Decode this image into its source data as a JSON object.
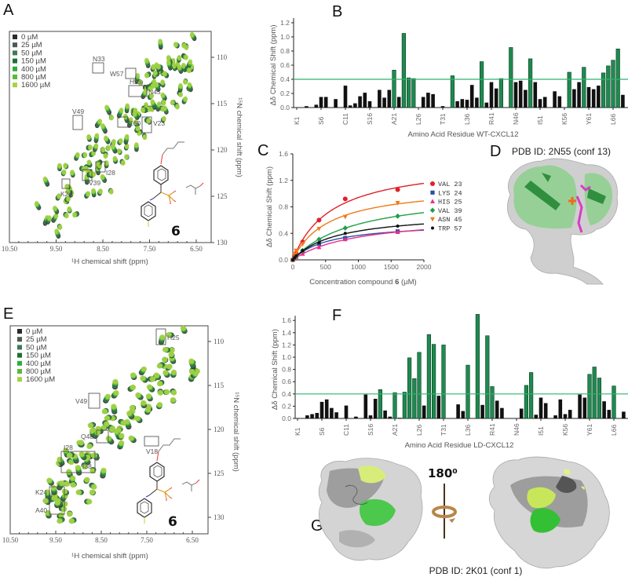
{
  "colors": {
    "significant_bar": "#1e8a50",
    "other_bar": "#111111",
    "threshold_line": "#2fb36b",
    "conc": [
      "#2a2a2a",
      "#4b5b4f",
      "#3f7a55",
      "#1f6e36",
      "#2cae3e",
      "#5cb83a",
      "#a6d246"
    ]
  },
  "panels": {
    "A": {
      "letter": "A",
      "legend": [
        "0 µM",
        "25 µM",
        "50 µM",
        "150 µM",
        "400 µM",
        "800 µM",
        "1600 µM"
      ],
      "x_ticks": [
        "10.50",
        "9.50",
        "8.50",
        "7.50",
        "6.50"
      ],
      "y_ticks": [
        "110",
        "115",
        "120",
        "125",
        "130"
      ],
      "xlabel": "¹H chemical shift (ppm)",
      "ylabel": "¹⁵N chemical shift (ppm)",
      "peak_labels": [
        "N33",
        "W57",
        "H25",
        "N45",
        "V49",
        "E60",
        "V23",
        "I28",
        "V39",
        "K24"
      ],
      "compound": "6"
    },
    "B": {
      "letter": "B"
    },
    "C": {
      "letter": "C"
    },
    "D": {
      "letter": "D",
      "title": "PDB ID: 2N55 (conf 13)"
    },
    "E": {
      "letter": "E",
      "legend": [
        "0 µM",
        "25 µM",
        "50 µM",
        "150 µM",
        "400 µM",
        "800 µM",
        "1600 µM"
      ],
      "x_ticks": [
        "10.50",
        "9.50",
        "8.50",
        "7.50",
        "6.50"
      ],
      "y_ticks": [
        "110",
        "115",
        "120",
        "125",
        "130"
      ],
      "xlabel": "¹H chemical shift (ppm)",
      "ylabel": "¹⁵N chemical shift (ppm)",
      "peak_labels": [
        "H25",
        "V49",
        "Q48",
        "V18",
        "I28",
        "I38",
        "K24",
        "A40"
      ],
      "compound": "6"
    },
    "F": {
      "letter": "F"
    },
    "G": {
      "letter": "G",
      "rotation": "180⁰",
      "title": "PDB ID: 2K01 (conf 1)"
    }
  },
  "chart_data": [
    {
      "panel": "B",
      "type": "bar",
      "xlabel": "Amino Acid Residue WT-CXCL12",
      "ylabel": "Δδ Chemical Shift (ppm)",
      "ylim": [
        0,
        1.2
      ],
      "y_ticks": [
        "0.0",
        "0.2",
        "0.4",
        "0.6",
        "0.8",
        "1.0",
        "1.2"
      ],
      "x_tick_labels": [
        "K1",
        "S6",
        "C11",
        "S16",
        "A21",
        "L26",
        "T31",
        "L36",
        "R41",
        "N46",
        "I51",
        "K56",
        "Y61",
        "L66"
      ],
      "threshold": 0.4,
      "residues": [
        3,
        5,
        6,
        7,
        9,
        11,
        12,
        13,
        14,
        15,
        16,
        18,
        19,
        20,
        21,
        22,
        23,
        24,
        25,
        27,
        28,
        29,
        31,
        33,
        34,
        35,
        36,
        37,
        38,
        39,
        40,
        41,
        42,
        43,
        45,
        46,
        47,
        48,
        49,
        50,
        51,
        52,
        54,
        55,
        57,
        58,
        59,
        60,
        61,
        62,
        63,
        64,
        65,
        66,
        67,
        68
      ],
      "values": [
        0.02,
        0.04,
        0.15,
        0.15,
        0.12,
        0.31,
        0.03,
        0.06,
        0.16,
        0.21,
        0.09,
        0.25,
        0.14,
        0.25,
        0.53,
        0.15,
        1.05,
        0.42,
        0.41,
        0.15,
        0.21,
        0.19,
        0.02,
        0.45,
        0.09,
        0.12,
        0.11,
        0.32,
        0.14,
        0.65,
        0.07,
        0.36,
        0.27,
        0.41,
        0.85,
        0.36,
        0.38,
        0.25,
        0.69,
        0.36,
        0.12,
        0.15,
        0.23,
        0.16,
        0.5,
        0.26,
        0.36,
        0.57,
        0.29,
        0.26,
        0.31,
        0.49,
        0.59,
        0.67,
        0.83,
        0.18
      ]
    },
    {
      "panel": "C",
      "type": "scatter",
      "xlabel_pre": "Concentration compound ",
      "xlabel_bold": "6",
      "xlabel_post": " (µM)",
      "ylabel": "Δδ Chemical Shift (ppm)",
      "xlim": [
        0,
        2000
      ],
      "ylim": [
        0,
        1.6
      ],
      "x_ticks": [
        "0",
        "500",
        "1000",
        "1500",
        "2000"
      ],
      "y_ticks": [
        "0.0",
        "0.4",
        "0.8",
        "1.2",
        "1.6"
      ],
      "x": [
        0,
        25,
        50,
        150,
        400,
        800,
        1600
      ],
      "series": [
        {
          "name": "VAL 23",
          "color": "#e0202a",
          "marker": "circle",
          "values": [
            0,
            0.05,
            0.1,
            0.27,
            0.6,
            0.92,
            1.06
          ]
        },
        {
          "name": "LYS 24",
          "color": "#2b4fa8",
          "marker": "square",
          "values": [
            0,
            0.02,
            0.05,
            0.13,
            0.24,
            0.33,
            0.43
          ]
        },
        {
          "name": "HIS 25",
          "color": "#e8308a",
          "marker": "triangle",
          "values": [
            0,
            0.02,
            0.04,
            0.09,
            0.19,
            0.31,
            0.42
          ]
        },
        {
          "name": "VAL 39",
          "color": "#1f9e4a",
          "marker": "diamond",
          "values": [
            0,
            0.03,
            0.06,
            0.14,
            0.31,
            0.48,
            0.66
          ]
        },
        {
          "name": "ASN 45",
          "color": "#f07a1a",
          "marker": "triangle-down",
          "values": [
            0,
            0.08,
            0.14,
            0.24,
            0.47,
            0.65,
            0.86
          ]
        },
        {
          "name": "TRP 57",
          "color": "#111111",
          "marker": "dot",
          "values": [
            0,
            0.03,
            0.06,
            0.14,
            0.26,
            0.4,
            0.51
          ]
        }
      ],
      "legend": "right"
    },
    {
      "panel": "F",
      "type": "bar",
      "xlabel": "Amino Acid Residue LD-CXCL12",
      "ylabel": "Δδ Chemical Shift (ppm)",
      "ylim": [
        0,
        1.6
      ],
      "y_ticks": [
        "0.0",
        "0.2",
        "0.4",
        "0.6",
        "0.8",
        "1.0",
        "1.2",
        "1.4",
        "1.6"
      ],
      "x_tick_labels": [
        "K1",
        "S6",
        "C11",
        "S16",
        "A21",
        "L26",
        "T31",
        "L36",
        "R41",
        "N46",
        "I51",
        "K56",
        "Y61",
        "L66"
      ],
      "threshold": 0.4,
      "residues": [
        3,
        4,
        5,
        6,
        7,
        8,
        9,
        11,
        13,
        15,
        16,
        17,
        18,
        19,
        20,
        21,
        22,
        23,
        24,
        25,
        26,
        27,
        28,
        29,
        30,
        31,
        34,
        35,
        36,
        38,
        39,
        40,
        41,
        42,
        43,
        47,
        48,
        49,
        50,
        51,
        52,
        54,
        55,
        56,
        57,
        59,
        60,
        61,
        62,
        63,
        64,
        65,
        66,
        68
      ],
      "values": [
        0.05,
        0.07,
        0.09,
        0.27,
        0.31,
        0.17,
        0.1,
        0.21,
        0.03,
        0.39,
        0.05,
        0.32,
        0.47,
        0.13,
        0.03,
        0.42,
        0.01,
        0.43,
        0.99,
        0.65,
        1.08,
        0.21,
        1.37,
        1.21,
        0.37,
        1.2,
        0.23,
        0.12,
        0.87,
        1.7,
        0.22,
        1.35,
        0.52,
        0.29,
        0.17,
        0.16,
        0.54,
        0.75,
        0.06,
        0.34,
        0.25,
        0.05,
        0.31,
        0.07,
        0.14,
        0.39,
        0.34,
        0.72,
        0.84,
        0.66,
        0.28,
        0.14,
        0.53,
        0.11
      ]
    }
  ]
}
